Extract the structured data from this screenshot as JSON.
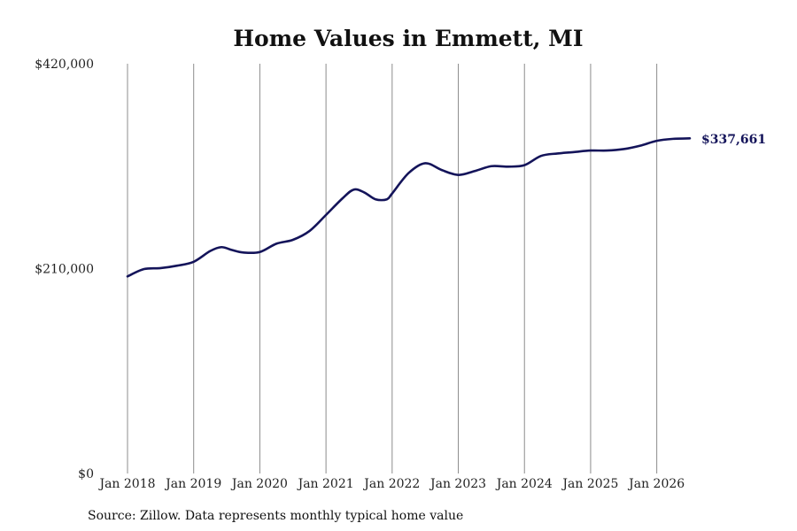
{
  "chart_data": {
    "type": "line",
    "title": "Home Values in Emmett, MI",
    "source": "Source: Zillow. Data represents monthly typical home value",
    "y_ticks": [
      {
        "value": 0,
        "label": "$0"
      },
      {
        "value": 210000,
        "label": "$210,000"
      },
      {
        "value": 420000,
        "label": "$420,000"
      }
    ],
    "x_ticks": [
      {
        "value": 2018.0,
        "label": "Jan 2018"
      },
      {
        "value": 2019.0,
        "label": "Jan 2019"
      },
      {
        "value": 2020.0,
        "label": "Jan 2020"
      },
      {
        "value": 2021.0,
        "label": "Jan 2021"
      },
      {
        "value": 2022.0,
        "label": "Jan 2022"
      },
      {
        "value": 2023.0,
        "label": "Jan 2023"
      },
      {
        "value": 2024.0,
        "label": "Jan 2024"
      },
      {
        "value": 2025.0,
        "label": "Jan 2025"
      },
      {
        "value": 2026.0,
        "label": "Jan 2026"
      }
    ],
    "xlim": [
      2018.0,
      2026.5
    ],
    "ylim": [
      0,
      420000
    ],
    "grid": "vertical",
    "line_color": "#14145a",
    "end_label": "$337,661",
    "series": [
      {
        "x": [
          2018.0,
          2018.25,
          2018.5,
          2018.75,
          2019.0,
          2019.25,
          2019.42,
          2019.58,
          2019.75,
          2020.0,
          2020.25,
          2020.5,
          2020.75,
          2021.0,
          2021.25,
          2021.42,
          2021.58,
          2021.75,
          2021.92,
          2022.0,
          2022.25,
          2022.5,
          2022.75,
          2023.0,
          2023.25,
          2023.5,
          2023.75,
          2024.0,
          2024.25,
          2024.5,
          2024.75,
          2025.0,
          2025.25,
          2025.5,
          2025.75,
          2026.0,
          2026.25,
          2026.5
        ],
        "y": [
          202000,
          209500,
          210500,
          213000,
          217000,
          228000,
          232000,
          229000,
          226500,
          227000,
          235500,
          239500,
          248500,
          265000,
          282000,
          291000,
          288000,
          281000,
          281000,
          287000,
          308000,
          318000,
          311000,
          306000,
          310000,
          315000,
          314500,
          316000,
          325500,
          328000,
          329500,
          331000,
          331000,
          332500,
          336000,
          341000,
          343000,
          343500
        ]
      }
    ]
  }
}
